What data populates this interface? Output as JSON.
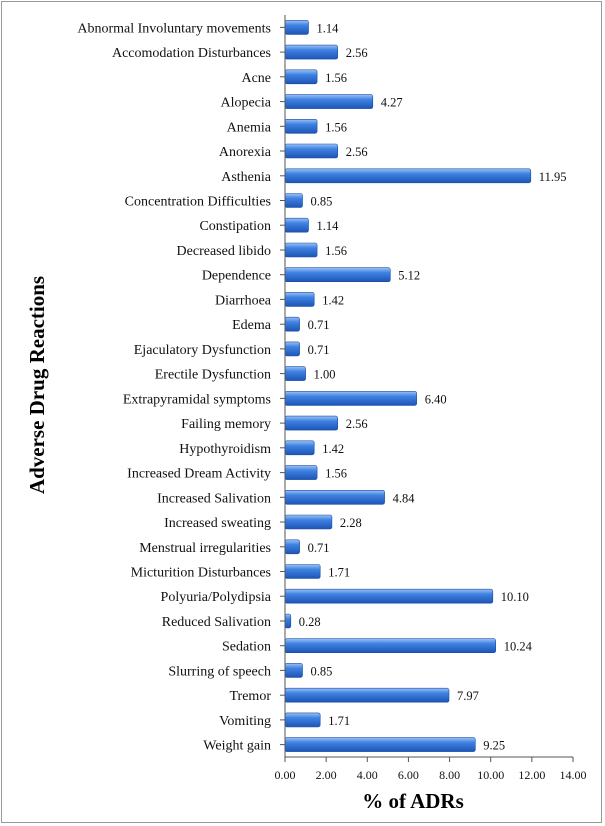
{
  "chart_data": {
    "type": "bar",
    "orientation": "horizontal",
    "xlabel": "% of ADRs",
    "ylabel": "Adverse Drug Reactions",
    "xlim": [
      0,
      14
    ],
    "xticks": [
      "0.00",
      "2.00",
      "4.00",
      "6.00",
      "8.00",
      "10.00",
      "12.00",
      "14.00"
    ],
    "grid": false,
    "bar_color": "#2f6fd6",
    "categories": [
      "Abnormal Involuntary movements",
      "Accomodation Disturbances",
      "Acne",
      "Alopecia",
      "Anemia",
      "Anorexia",
      "Asthenia",
      "Concentration Difficulties",
      "Constipation",
      "Decreased libido",
      "Dependence",
      "Diarrhoea",
      "Edema",
      "Ejaculatory Dysfunction",
      "Erectile Dysfunction",
      "Extrapyramidal symptoms",
      "Failing memory",
      "Hypothyroidism",
      "Increased Dream Activity",
      "Increased Salivation",
      "Increased sweating",
      "Menstrual irregularities",
      "Micturition Disturbances",
      "Polyuria/Polydipsia",
      "Reduced Salivation",
      "Sedation",
      "Slurring of speech",
      "Tremor",
      "Vomiting",
      "Weight gain"
    ],
    "values": [
      1.14,
      2.56,
      1.56,
      4.27,
      1.56,
      2.56,
      11.95,
      0.85,
      1.14,
      1.56,
      5.12,
      1.42,
      0.71,
      0.71,
      1.0,
      6.4,
      2.56,
      1.42,
      1.56,
      4.84,
      2.28,
      0.71,
      1.71,
      10.1,
      0.28,
      10.24,
      0.85,
      7.97,
      1.71,
      9.25
    ],
    "value_labels": [
      "1.14",
      "2.56",
      "1.56",
      "4.27",
      "1.56",
      "2.56",
      "11.95",
      "0.85",
      "1.14",
      "1.56",
      "5.12",
      "1.42",
      "0.71",
      "0.71",
      "1.00",
      "6.40",
      "2.56",
      "1.42",
      "1.56",
      "4.84",
      "2.28",
      "0.71",
      "1.71",
      "10.10",
      "0.28",
      "10.24",
      "0.85",
      "7.97",
      "1.71",
      "9.25"
    ]
  }
}
